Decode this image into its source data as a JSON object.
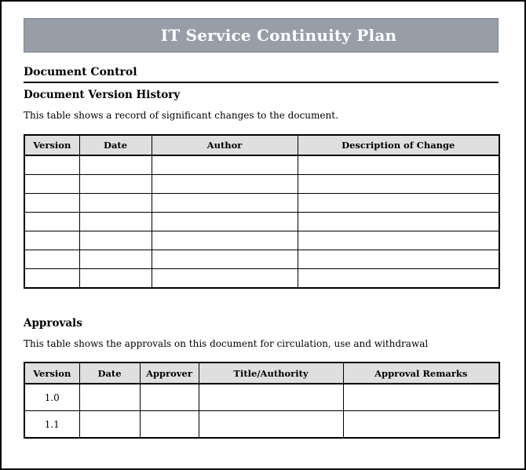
{
  "banner": {
    "title": "IT Service Continuity Plan",
    "bg_color": "#989ea8",
    "border_color": "#7e8590",
    "text_color": "#ffffff"
  },
  "colors": {
    "table_header_bg": "#dfdfdf",
    "table_border": "#000000",
    "page_border": "#000000"
  },
  "document_control": {
    "heading": "Document Control"
  },
  "version_history": {
    "heading": "Document Version History",
    "description": "This table shows a record of significant changes to the document.",
    "table": {
      "columns": [
        "Version",
        "Date",
        "Author",
        "Description of Change"
      ],
      "rows": [
        [
          "",
          "",
          "",
          ""
        ],
        [
          "",
          "",
          "",
          ""
        ],
        [
          "",
          "",
          "",
          ""
        ],
        [
          "",
          "",
          "",
          ""
        ],
        [
          "",
          "",
          "",
          ""
        ],
        [
          "",
          "",
          "",
          ""
        ],
        [
          "",
          "",
          "",
          ""
        ]
      ]
    }
  },
  "approvals": {
    "heading": "Approvals",
    "description": "This table shows the approvals on this document for circulation, use and withdrawal",
    "table": {
      "columns": [
        "Version",
        "Date",
        "Approver",
        "Title/Authority",
        "Approval Remarks"
      ],
      "rows": [
        [
          "1.0",
          "",
          "",
          "",
          ""
        ],
        [
          "1.1",
          "",
          "",
          "",
          ""
        ]
      ]
    }
  }
}
